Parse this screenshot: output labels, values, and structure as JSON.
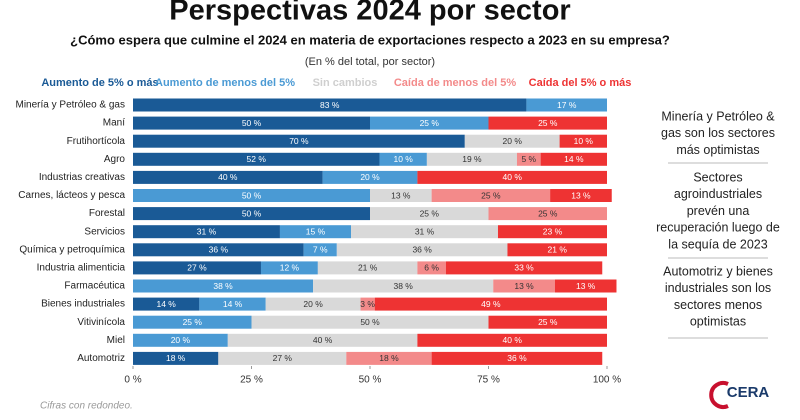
{
  "chart_data": {
    "type": "stacked_barh",
    "title": "Perspectivas 2024 por sector",
    "subtitle": "¿Cómo espera que culmine el 2024 en materia de exportaciones respecto a 2023 en su empresa?",
    "axis_label": "(En % del total, por sector)",
    "note": "Cifras con redondeo.",
    "logo": "CERA",
    "annotations": [
      [
        "Minería y Petróleo &",
        "gas son los sectores",
        "más optimistas"
      ],
      [
        "Sectores",
        "agroindustriales",
        "prevén una",
        "recuperación luego de",
        "la sequía de 2023"
      ],
      [
        "Automotriz y bienes",
        "industriales son los",
        "sectores menos",
        "optimistas"
      ]
    ],
    "categories": [
      "Minería y Petróleo & gas",
      "Maní",
      "Frutihortícola",
      "Agro",
      "Industrias creativas",
      "Carnes, lácteos y pesca",
      "Forestal",
      "Servicios",
      "Química y petroquímica",
      "Industria alimenticia",
      "Farmacéutica",
      "Bienes industriales",
      "Vitivinícola",
      "Miel",
      "Automotriz"
    ],
    "series": [
      {
        "name": "Aumento de 5% o más",
        "color": "#1a5a96",
        "values": [
          83,
          50,
          70,
          52,
          40,
          null,
          50,
          31,
          36,
          27,
          null,
          14,
          null,
          null,
          18
        ],
        "value_labels": [
          "83 %",
          "50 %",
          "70 %",
          "52 %",
          "40 %",
          null,
          "50 %",
          "31 %",
          "36 %",
          "27 %",
          null,
          "14 %",
          null,
          null,
          "18 %"
        ]
      },
      {
        "name": "Aumento de menos del 5%",
        "color": "#4a9ad4",
        "values": [
          17,
          25,
          null,
          10,
          20,
          50,
          null,
          15,
          7,
          12,
          38,
          14,
          25,
          20,
          null
        ],
        "value_labels": [
          "17 %",
          "25 %",
          null,
          "10 %",
          "20 %",
          "50 %",
          null,
          "15 %",
          "7 %",
          "12 %",
          "38 %",
          "14 %",
          "25 %",
          "20 %",
          null
        ]
      },
      {
        "name": "Sin cambios",
        "color": "#d9d9d9",
        "values": [
          null,
          null,
          20,
          19,
          null,
          13,
          25,
          31,
          36,
          21,
          38,
          20,
          50,
          40,
          27
        ],
        "value_labels": [
          null,
          null,
          "20 %",
          "19 %",
          null,
          "13 %",
          "25 %",
          "31 %",
          "36 %",
          "21 %",
          "38 %",
          "20 %",
          "50 %",
          "40 %",
          "27 %"
        ]
      },
      {
        "name": "Caída de menos del 5%",
        "color": "#f38a8a",
        "values": [
          null,
          null,
          null,
          5,
          null,
          25,
          25,
          null,
          null,
          6,
          13,
          3,
          null,
          null,
          18
        ],
        "value_labels": [
          null,
          null,
          null,
          "5 %",
          null,
          "25 %",
          "25 %",
          null,
          null,
          "6 %",
          "13 %",
          "3 %",
          null,
          null,
          "18 %"
        ]
      },
      {
        "name": "Caída del 5% o más",
        "color": "#ee3333",
        "values": [
          null,
          25,
          10,
          14,
          40,
          13,
          null,
          23,
          21,
          33,
          13,
          49,
          25,
          40,
          36
        ],
        "value_labels": [
          null,
          "25 %",
          "10 %",
          "14 %",
          "40 %",
          "13 %",
          null,
          "23 %",
          "21 %",
          "33 %",
          "13 %",
          "49 %",
          "25 %",
          "40 %",
          "36 %"
        ]
      }
    ],
    "xlim": [
      0,
      100
    ],
    "xticks": [
      {
        "value": 0,
        "label": "0 %"
      },
      {
        "value": 25,
        "label": "25 %"
      },
      {
        "value": 50,
        "label": "50 %"
      },
      {
        "value": 75,
        "label": "75 %"
      },
      {
        "value": 100,
        "label": "100 %"
      }
    ]
  }
}
